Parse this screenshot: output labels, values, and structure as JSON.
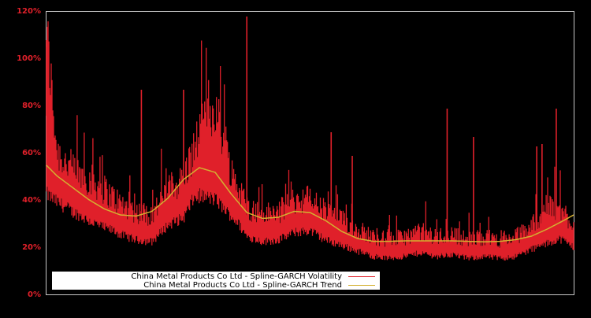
{
  "chart_data": {
    "type": "line",
    "title": "",
    "xlabel": "",
    "ylabel": "",
    "ylim": [
      0,
      120
    ],
    "y_ticks": [
      "0%",
      "20%",
      "40%",
      "60%",
      "80%",
      "100%",
      "120%"
    ],
    "grid": false,
    "legend_position": "lower left",
    "x_normalized": [
      0.0,
      0.02,
      0.05,
      0.08,
      0.11,
      0.14,
      0.17,
      0.2,
      0.23,
      0.26,
      0.29,
      0.32,
      0.35,
      0.38,
      0.41,
      0.44,
      0.47,
      0.5,
      0.53,
      0.56,
      0.59,
      0.62,
      0.65,
      0.68,
      0.71,
      0.74,
      0.77,
      0.8,
      0.83,
      0.86,
      0.89,
      0.92,
      0.95,
      0.98,
      1.0
    ],
    "series": [
      {
        "name": "China Metal Products Co Ltd - Spline-GARCH Volatility",
        "color": "#e0202a",
        "values": [
          95,
          52,
          45,
          42,
          38,
          33,
          30,
          29,
          38,
          42,
          58,
          68,
          45,
          32,
          29,
          30,
          34,
          35,
          30,
          27,
          24,
          21,
          20,
          21,
          23,
          21,
          22,
          20,
          21,
          20,
          21,
          25,
          32,
          30,
          26
        ]
      },
      {
        "name": "China Metal Products Co Ltd - Spline-GARCH Trend",
        "color": "#d4b030",
        "values": [
          55,
          50.5,
          45.5,
          40.5,
          36.5,
          34,
          33.5,
          35.5,
          41,
          49,
          54,
          52,
          43,
          35,
          32.5,
          33,
          35.5,
          35,
          31.5,
          27,
          24,
          22.8,
          22.8,
          23,
          23,
          23,
          23,
          22.8,
          22.6,
          22.8,
          23.5,
          25,
          28,
          31.5,
          34
        ]
      }
    ],
    "spikes": [
      {
        "x_normalized": 0.0,
        "value": 108
      },
      {
        "x_normalized": 0.18,
        "value": 87
      },
      {
        "x_normalized": 0.26,
        "value": 87
      },
      {
        "x_normalized": 0.38,
        "value": 118
      },
      {
        "x_normalized": 0.54,
        "value": 69
      },
      {
        "x_normalized": 0.58,
        "value": 59
      },
      {
        "x_normalized": 0.76,
        "value": 79
      },
      {
        "x_normalized": 0.81,
        "value": 67
      },
      {
        "x_normalized": 0.93,
        "value": 63
      },
      {
        "x_normalized": 0.94,
        "value": 64
      },
      {
        "x_normalized": 0.967,
        "value": 79
      }
    ]
  },
  "axes": {
    "tick_color": "#e0202a",
    "frame_color": "#c8c8c8",
    "background": "#000000"
  },
  "legend": {
    "items": [
      {
        "label": "China Metal Products Co Ltd - Spline-GARCH Volatility",
        "color": "#e0202a"
      },
      {
        "label": "China Metal Products Co Ltd - Spline-GARCH Trend",
        "color": "#d4b030"
      }
    ]
  }
}
